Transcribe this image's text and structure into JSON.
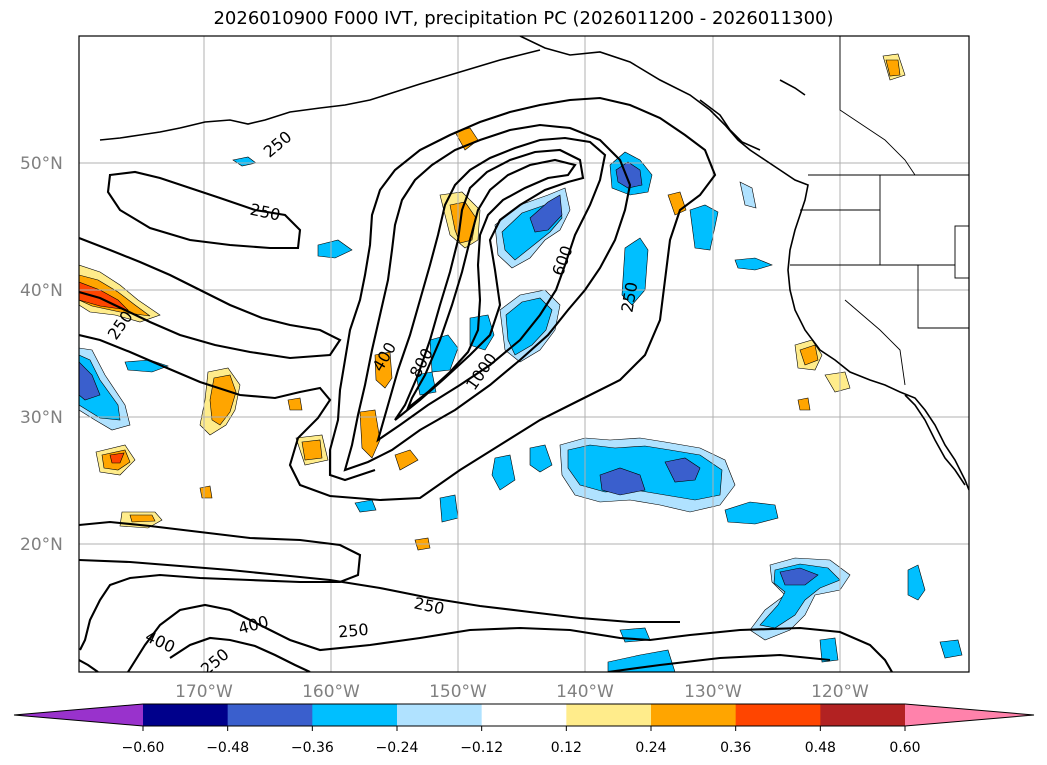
{
  "title": "2026010900 F000 IVT, precipitation PC (2026011200 - 2026011300)",
  "map": {
    "lon_ticks": [
      "170°W",
      "160°W",
      "150°W",
      "140°W",
      "130°W",
      "120°W"
    ],
    "lat_ticks": [
      "50°N",
      "40°N",
      "30°N",
      "20°N"
    ],
    "contour_levels": [
      "250",
      "400",
      "600",
      "800",
      "1000"
    ],
    "contour_labels": [
      "250",
      "250",
      "250",
      "250",
      "250",
      "250",
      "250",
      "400",
      "400",
      "400",
      "600",
      "800",
      "1000"
    ]
  },
  "colorbar": {
    "tick_labels": [
      "−0.60",
      "−0.48",
      "−0.36",
      "−0.24",
      "−0.12",
      "0.12",
      "0.24",
      "0.36",
      "0.48",
      "0.60"
    ],
    "colors": [
      "#9932cc",
      "#00008b",
      "#3a5fcd",
      "#00bfff",
      "#b0e2ff",
      "#ffffff",
      "#ffec8b",
      "#ffa500",
      "#ff4500",
      "#b22222",
      "#ff82ab"
    ]
  },
  "colors": {
    "pos_light": "#ffec8b",
    "pos_mid": "#ffa500",
    "pos_strong": "#ff4500",
    "neg_light": "#b0e2ff",
    "neg_mid": "#00bfff",
    "neg_strong": "#3a5fcd"
  }
}
